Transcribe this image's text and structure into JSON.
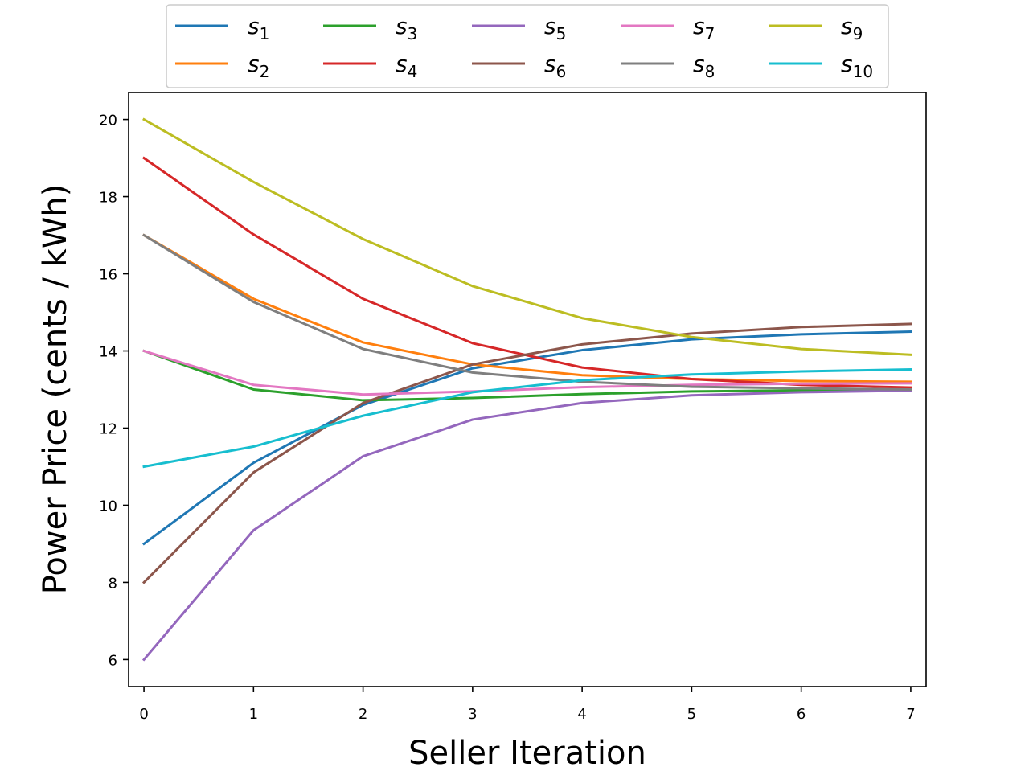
{
  "chart_data": {
    "type": "line",
    "xlabel": "Seller Iteration",
    "ylabel": "Power Price (cents / kWh)",
    "xlim": [
      -0.14,
      7.14
    ],
    "ylim": [
      5.3,
      20.7
    ],
    "xticks": [
      0,
      1,
      2,
      3,
      4,
      5,
      6,
      7
    ],
    "yticks": [
      6,
      8,
      10,
      12,
      14,
      16,
      18,
      20
    ],
    "grid": false,
    "legend_position": "top-center (above plot)",
    "legend_columns": 5,
    "x": [
      0,
      1,
      2,
      3,
      4,
      5,
      6,
      7
    ],
    "series": [
      {
        "name": "s",
        "subscript": "1",
        "color": "#1f77b4",
        "values": [
          9.0,
          11.1,
          12.6,
          13.55,
          14.02,
          14.3,
          14.43,
          14.5
        ]
      },
      {
        "name": "s",
        "subscript": "2",
        "color": "#ff7f0e",
        "values": [
          17.0,
          15.35,
          14.22,
          13.65,
          13.37,
          13.27,
          13.22,
          13.2
        ]
      },
      {
        "name": "s",
        "subscript": "3",
        "color": "#2ca02c",
        "values": [
          14.0,
          13.0,
          12.72,
          12.78,
          12.88,
          12.95,
          12.98,
          13.0
        ]
      },
      {
        "name": "s",
        "subscript": "4",
        "color": "#d62728",
        "values": [
          19.0,
          17.02,
          15.35,
          14.2,
          13.57,
          13.27,
          13.12,
          13.05
        ]
      },
      {
        "name": "s",
        "subscript": "5",
        "color": "#9467bd",
        "values": [
          6.0,
          9.35,
          11.27,
          12.22,
          12.65,
          12.85,
          12.93,
          12.97
        ]
      },
      {
        "name": "s",
        "subscript": "6",
        "color": "#8c564b",
        "values": [
          8.0,
          10.85,
          12.65,
          13.65,
          14.17,
          14.45,
          14.62,
          14.7
        ]
      },
      {
        "name": "s",
        "subscript": "7",
        "color": "#e377c2",
        "values": [
          14.0,
          13.12,
          12.87,
          12.95,
          13.06,
          13.12,
          13.15,
          13.16
        ]
      },
      {
        "name": "s",
        "subscript": "8",
        "color": "#7f7f7f",
        "values": [
          17.0,
          15.27,
          14.05,
          13.44,
          13.2,
          13.07,
          13.03,
          13.0
        ]
      },
      {
        "name": "s",
        "subscript": "9",
        "color": "#bcbd22",
        "values": [
          20.0,
          18.38,
          16.9,
          15.68,
          14.85,
          14.36,
          14.05,
          13.9
        ]
      },
      {
        "name": "s",
        "subscript": "10",
        "color": "#17becf",
        "values": [
          11.0,
          11.52,
          12.32,
          12.93,
          13.24,
          13.39,
          13.47,
          13.52
        ]
      }
    ]
  }
}
